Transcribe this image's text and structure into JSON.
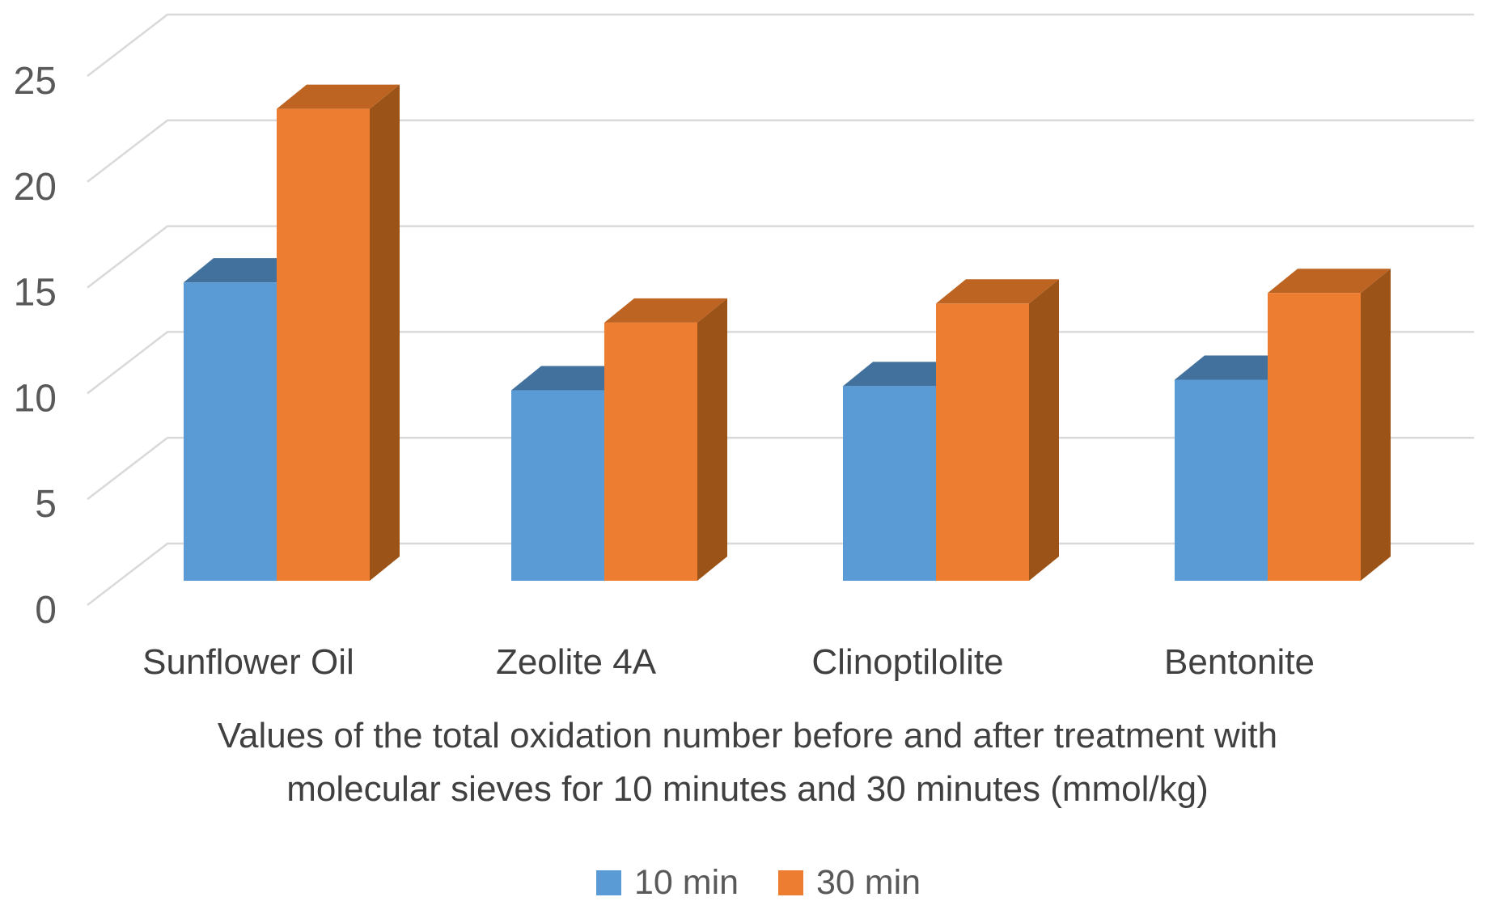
{
  "chart_data": {
    "type": "bar",
    "variant": "3d-clustered-column",
    "categories": [
      "Sunflower Oil",
      "Zeolite 4A",
      "Clinoptilolite",
      "Bentonite"
    ],
    "series": [
      {
        "name": "10 min",
        "color": "#5B9BD5",
        "values": [
          14.1,
          9.0,
          9.2,
          9.5
        ]
      },
      {
        "name": "30 min",
        "color": "#ED7D31",
        "values": [
          22.3,
          12.2,
          13.1,
          13.6
        ]
      }
    ],
    "title": "Values of the total oxidation number before and after treatment with molecular sieves for 10 minutes and 30 minutes (mmol/kg)",
    "title_lines": [
      "Values of the total oxidation number before and after treatment with",
      "molecular sieves for 10 minutes and 30 minutes (mmol/kg)"
    ],
    "xlabel": "",
    "ylabel": "",
    "ylim": [
      0,
      25
    ],
    "yticks": [
      0,
      5,
      10,
      15,
      20,
      25
    ],
    "grid": true,
    "legend_position": "bottom"
  },
  "legend": {
    "items": [
      {
        "label": "10 min",
        "color": "#5B9BD5"
      },
      {
        "label": "30 min",
        "color": "#ED7D31"
      }
    ]
  },
  "colors": {
    "background": "#FFFFFF",
    "grid": "#D9D9D9",
    "tick_text": "#595959",
    "category_text": "#404040",
    "title_text": "#404040",
    "legend_text": "#595959",
    "series_faces": [
      {
        "front": "#5B9BD5",
        "top": "#41719C",
        "side": "#36618F"
      },
      {
        "front": "#ED7D31",
        "top": "#BE6422",
        "side": "#9C5318"
      }
    ]
  }
}
